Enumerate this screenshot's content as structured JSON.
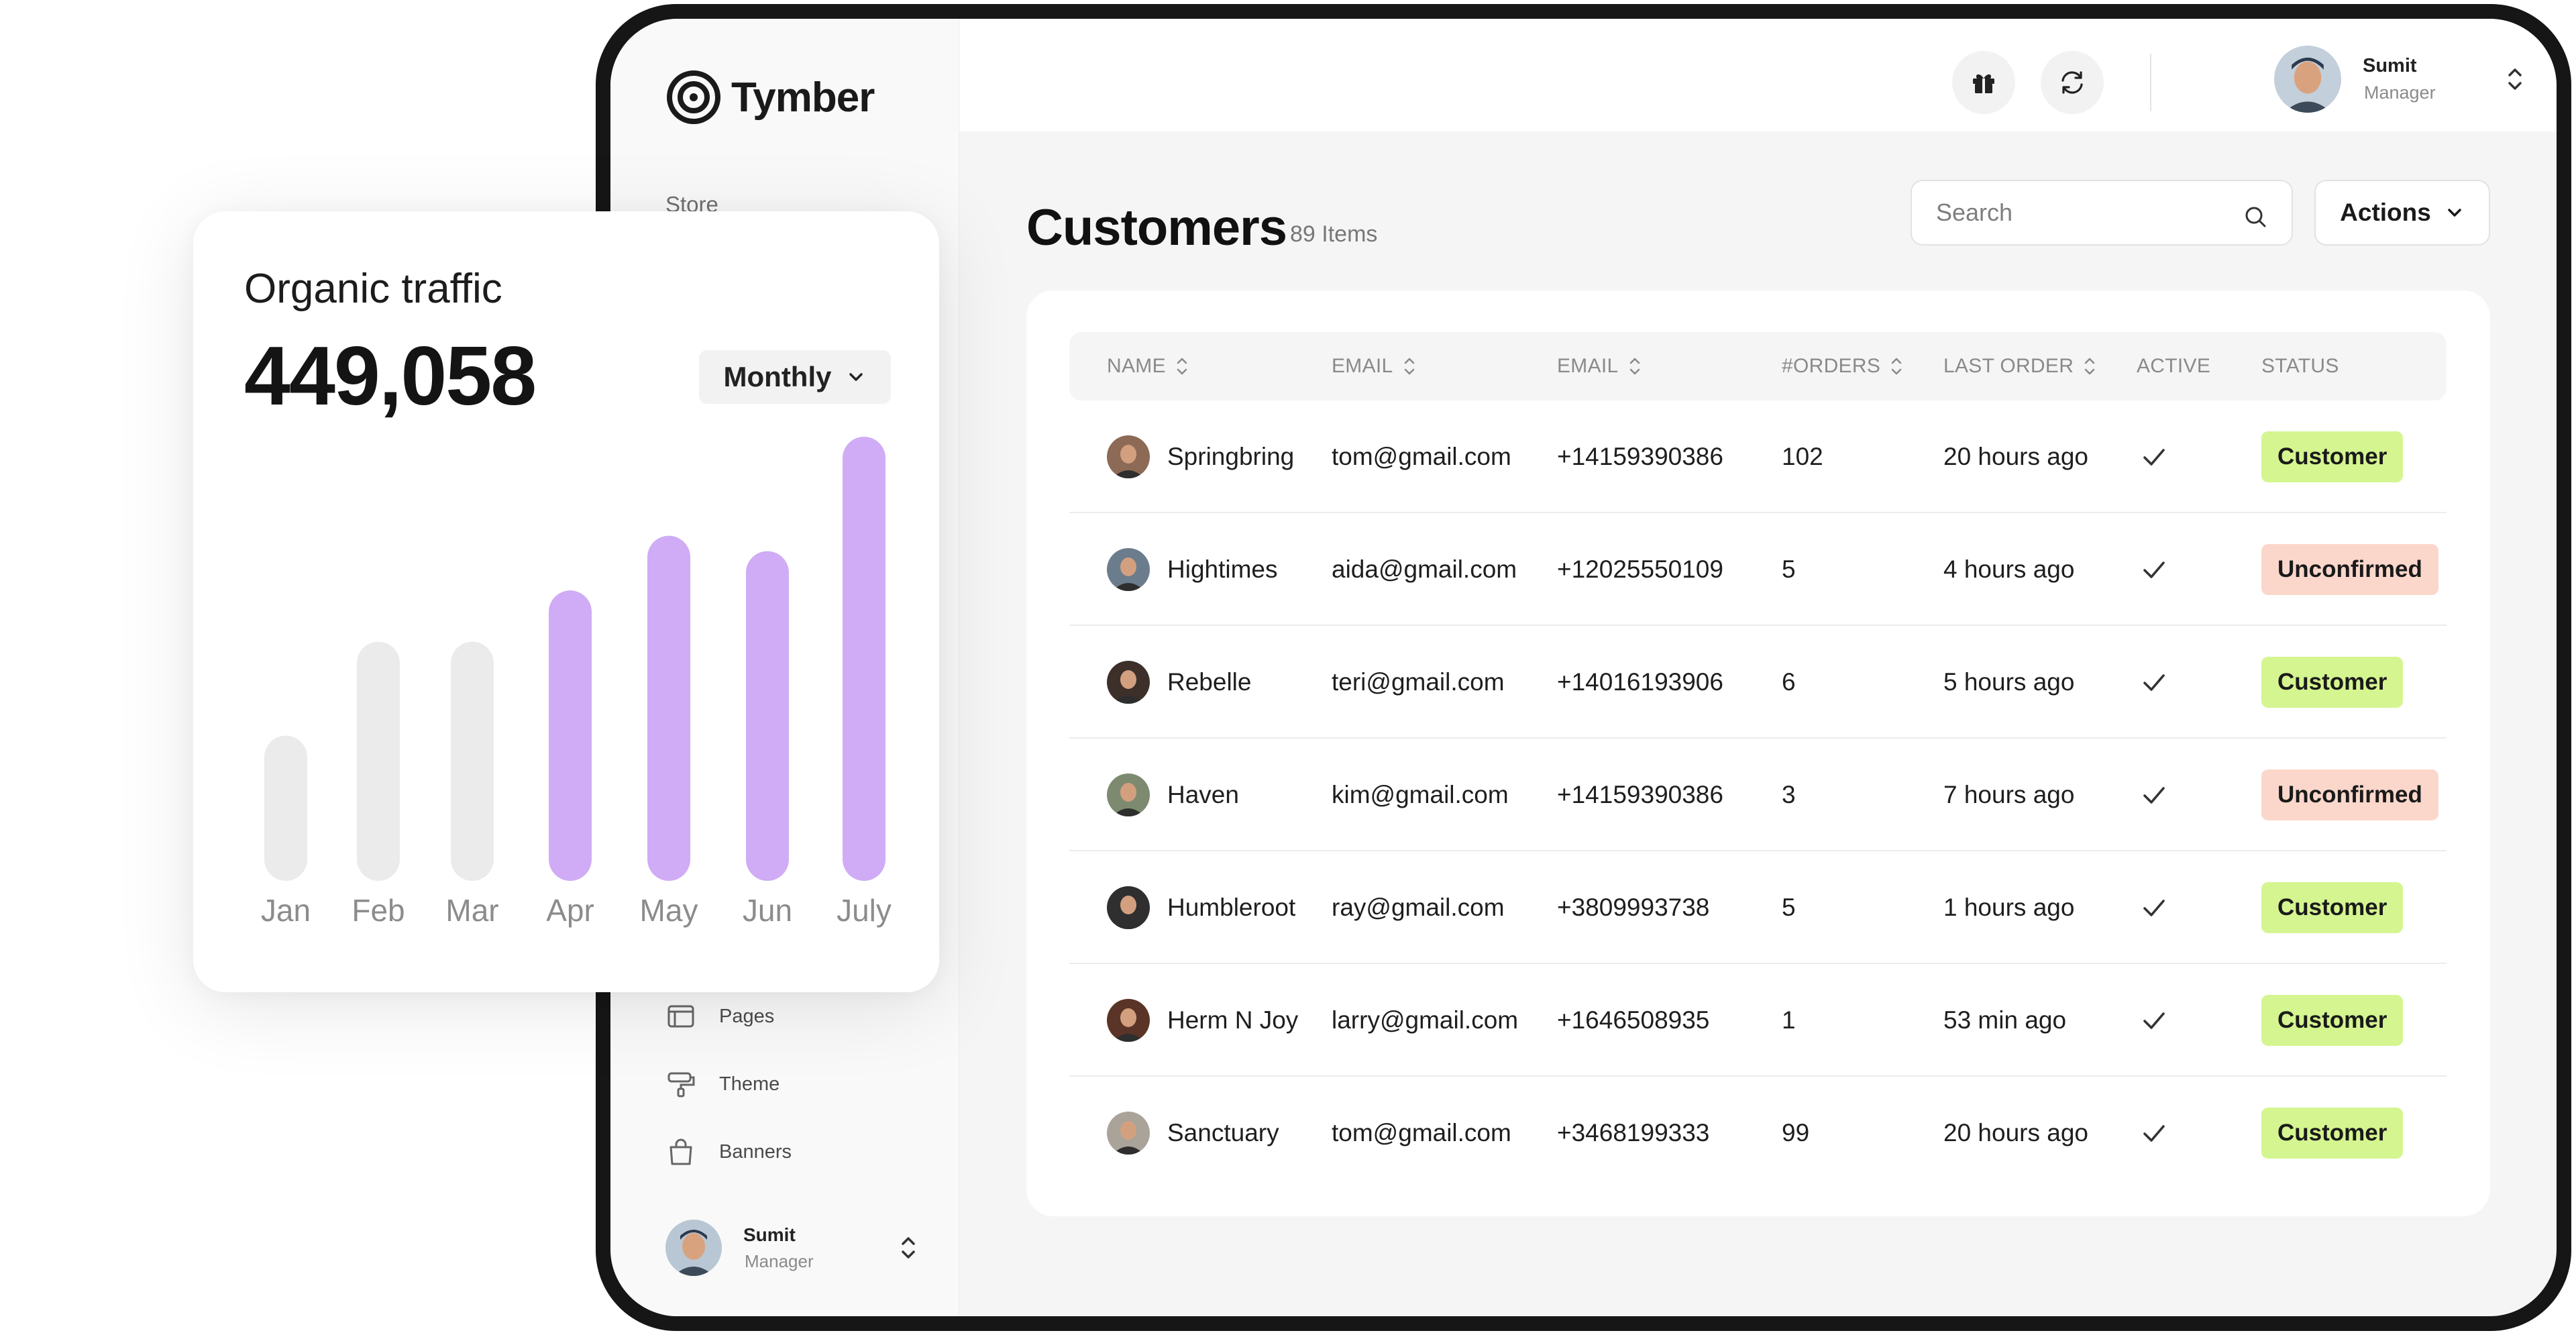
{
  "brand": {
    "name": "Tymber"
  },
  "sidebar": {
    "section_label": "Store",
    "items": [
      {
        "label": "Pages",
        "icon": "browser-window-icon"
      },
      {
        "label": "Theme",
        "icon": "paint-roller-icon"
      },
      {
        "label": "Banners",
        "icon": "shopping-bag-icon"
      }
    ],
    "user": {
      "name": "Sumit",
      "role": "Manager"
    }
  },
  "topbar": {
    "icons": [
      "gift-icon",
      "refresh-icon"
    ],
    "user": {
      "name": "Sumit",
      "role": "Manager"
    }
  },
  "page": {
    "title": "Customers",
    "count": "89 Items",
    "search_placeholder": "Search",
    "actions_label": "Actions"
  },
  "table": {
    "columns": [
      "NAME",
      "EMAIL",
      "EMAIL",
      "#ORDERS",
      "LAST ORDER",
      "ACTIVE",
      "STATUS"
    ],
    "rows": [
      {
        "name": "Springbring",
        "email": "tom@gmail.com",
        "phone": "+14159390386",
        "orders": "102",
        "last_order": "20 hours ago",
        "active": true,
        "status": "Customer"
      },
      {
        "name": "Hightimes",
        "email": "aida@gmail.com",
        "phone": "+12025550109",
        "orders": "5",
        "last_order": "4 hours ago",
        "active": true,
        "status": "Unconfirmed"
      },
      {
        "name": "Rebelle",
        "email": "teri@gmail.com",
        "phone": "+14016193906",
        "orders": "6",
        "last_order": "5 hours ago",
        "active": true,
        "status": "Customer"
      },
      {
        "name": "Haven",
        "email": "kim@gmail.com",
        "phone": "+14159390386",
        "orders": "3",
        "last_order": "7 hours ago",
        "active": true,
        "status": "Unconfirmed"
      },
      {
        "name": "Humbleroot",
        "email": "ray@gmail.com",
        "phone": "+3809993738",
        "orders": "5",
        "last_order": "1 hours ago",
        "active": true,
        "status": "Customer"
      },
      {
        "name": "Herm N Joy",
        "email": "larry@gmail.com",
        "phone": "+1646508935",
        "orders": "1",
        "last_order": "53 min ago",
        "active": true,
        "status": "Customer"
      },
      {
        "name": "Sanctuary",
        "email": "tom@gmail.com",
        "phone": "+3468199333",
        "orders": "99",
        "last_order": "20 hours ago",
        "active": true,
        "status": "Customer"
      }
    ],
    "status_colors": {
      "Customer": "#d4f58f",
      "Unconfirmed": "#fbd7cb"
    }
  },
  "traffic": {
    "title": "Organic traffic",
    "value": "449,058",
    "period": "Monthly",
    "chart_data": {
      "type": "bar",
      "categories": [
        "Jan",
        "Feb",
        "Mar",
        "Apr",
        "May",
        "Jun",
        "July"
      ],
      "values": [
        85,
        140,
        140,
        170,
        202,
        193,
        260
      ],
      "highlighted": [
        false,
        false,
        false,
        true,
        true,
        true,
        true
      ],
      "colors": {
        "muted": "#ebebeb",
        "highlight": "#cfacf5"
      },
      "ylim": [
        0,
        260
      ]
    }
  }
}
